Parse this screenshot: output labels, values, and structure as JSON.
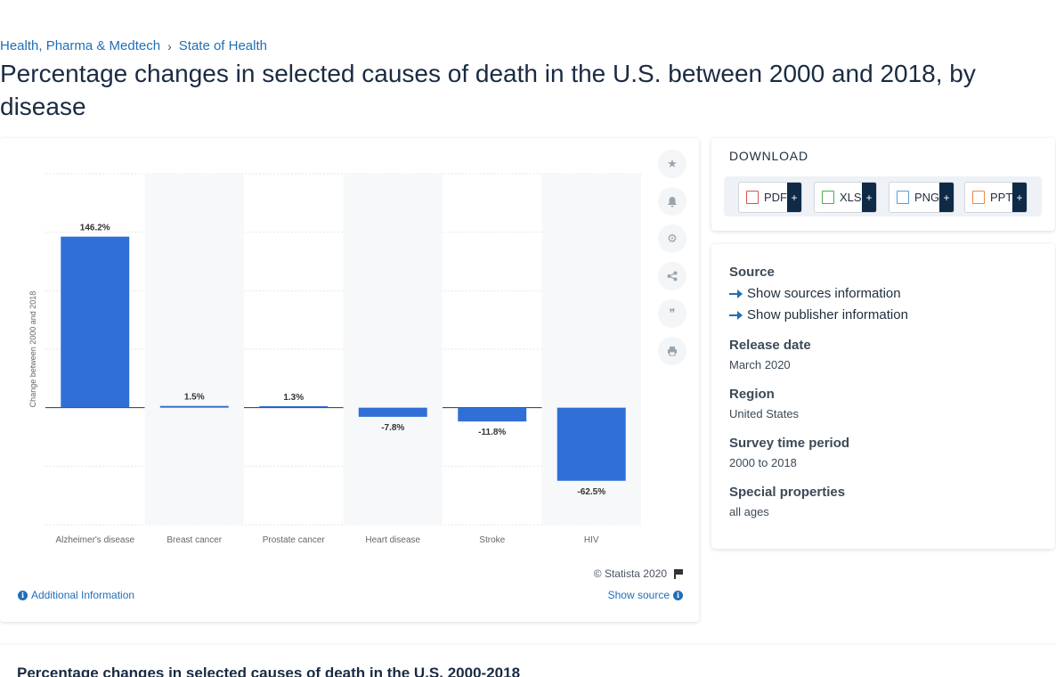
{
  "breadcrumb": {
    "items": [
      "Health, Pharma & Medtech",
      "State of Health"
    ],
    "separator": "›"
  },
  "page": {
    "title": "Percentage changes in selected causes of death in the U.S. between 2000 and 2018, by disease"
  },
  "chart": {
    "copyright": "© Statista 2020",
    "additional_info": "Additional Information",
    "show_source": "Show source",
    "bar_color": "#2f6fd6"
  },
  "chart_data": {
    "type": "bar",
    "categories": [
      "Alzheimer's disease",
      "Breast cancer",
      "Prostate cancer",
      "Heart disease",
      "Stroke",
      "HIV"
    ],
    "values": [
      146.2,
      1.5,
      1.3,
      -7.8,
      -11.8,
      -62.5
    ],
    "data_labels": [
      "146.2%",
      "1.5%",
      "1.3%",
      "-7.8%",
      "-11.8%",
      "-62.5%"
    ],
    "title": "",
    "xlabel": "",
    "ylabel": "Change between 2000 and 2018",
    "ylim": [
      -100,
      200
    ],
    "ytick_step": 50,
    "grid": true,
    "legend": "none"
  },
  "tools": [
    "star-icon",
    "bell-icon",
    "gear-icon",
    "share-icon",
    "quote-icon",
    "print-icon"
  ],
  "download": {
    "title": "DOWNLOAD",
    "buttons": [
      {
        "label": "PDF",
        "color": "#d9534f"
      },
      {
        "label": "XLS",
        "color": "#4cae4c"
      },
      {
        "label": "PNG",
        "color": "#5b9bd5"
      },
      {
        "label": "PPT",
        "color": "#f0883e"
      }
    ],
    "plus": "+"
  },
  "info": {
    "source_heading": "Source",
    "show_sources": "Show sources information",
    "show_publisher": "Show publisher information",
    "release_heading": "Release date",
    "release_value": "March 2020",
    "region_heading": "Region",
    "region_value": "United States",
    "survey_heading": "Survey time period",
    "survey_value": "2000 to 2018",
    "special_heading": "Special properties",
    "special_value": "all ages"
  },
  "bottom": {
    "title": "Percentage changes in selected causes of death in the U.S. 2000-2018"
  }
}
